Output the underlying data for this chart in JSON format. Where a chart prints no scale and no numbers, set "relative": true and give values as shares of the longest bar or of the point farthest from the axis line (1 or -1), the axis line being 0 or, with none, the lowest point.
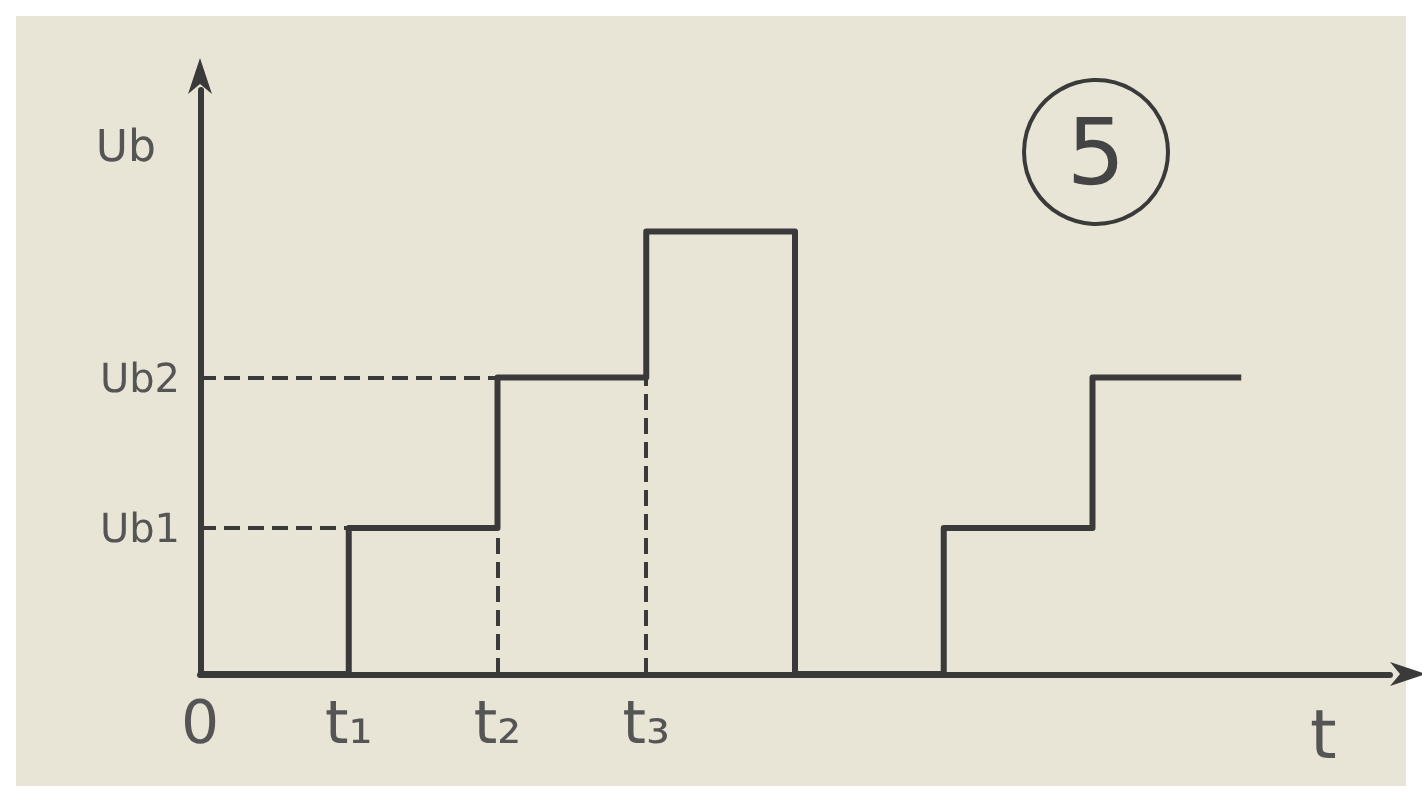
{
  "chart_data": {
    "type": "step",
    "xlabel": "t",
    "ylabel": "Ub",
    "relative": true,
    "categories": [
      "0",
      "t₁",
      "t₂",
      "t₃",
      null,
      null,
      null,
      null,
      null
    ],
    "series": [
      {
        "color": "#3a3a3a",
        "values": [
          0,
          0.33,
          0.67,
          1,
          0,
          0.33,
          0.67,
          0.67,
          null
        ]
      }
    ],
    "ref_lines": [
      {
        "axis": "y",
        "value": 0.33,
        "label": "Ub1",
        "line_style": "dashed",
        "color": "#3a3a3a"
      },
      {
        "axis": "y",
        "value": 0.67,
        "label": "Ub2",
        "line_style": "dashed",
        "color": "#3a3a3a"
      },
      {
        "axis": "x",
        "value": "t₂",
        "line_style": "dashed",
        "color": "#3a3a3a"
      },
      {
        "axis": "x",
        "value": "t₃",
        "line_style": "dashed",
        "color": "#3a3a3a"
      }
    ],
    "annotations": [
      "5"
    ],
    "grid": false,
    "marker": "none"
  }
}
